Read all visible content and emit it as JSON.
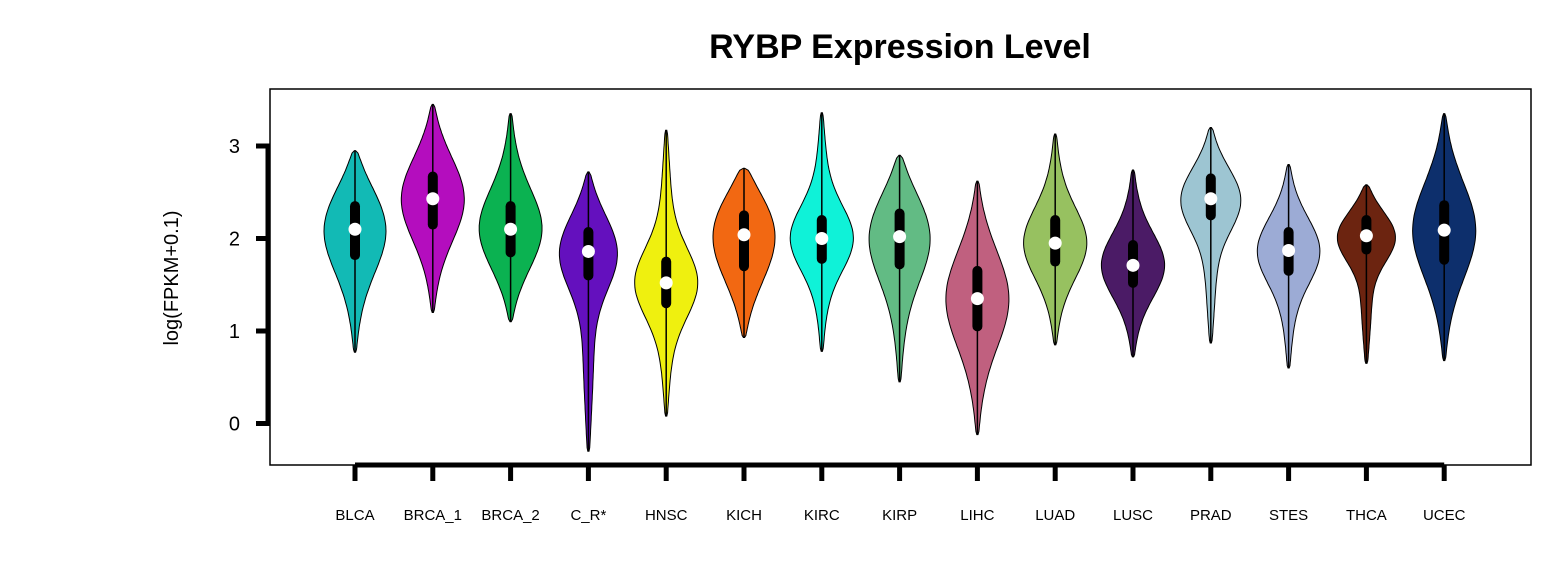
{
  "chart_data": {
    "type": "violin",
    "title": "RYBP Expression Level",
    "xlabel": "",
    "ylabel": "log(FPKM+0.1)",
    "ylim": [
      -0.45,
      3.6
    ],
    "yticks": [
      0,
      1,
      2,
      3
    ],
    "grid": false,
    "legend": "none",
    "categories": [
      "BLCA",
      "BRCA_1",
      "BRCA_2",
      "C_R*",
      "HNSC",
      "KICH",
      "KIRC",
      "KIRP",
      "LIHC",
      "LUAD",
      "LUSC",
      "PRAD",
      "STES",
      "THCA",
      "UCEC"
    ],
    "colors": [
      "#12BAB5",
      "#B40DBE",
      "#0BB251",
      "#6410BE",
      "#EFF00F",
      "#F26812",
      "#0FF2D8",
      "#62BB84",
      "#C0607F",
      "#97C160",
      "#4B1B66",
      "#9DC5D2",
      "#9CABD5",
      "#6C2410",
      "#0D2F6C"
    ],
    "series": [
      {
        "category": "BLCA",
        "min": 0.77,
        "q1": 1.82,
        "median": 2.1,
        "q3": 2.35,
        "max": 2.95
      },
      {
        "category": "BRCA_1",
        "min": 1.2,
        "q1": 2.15,
        "median": 2.43,
        "q3": 2.67,
        "max": 3.45
      },
      {
        "category": "BRCA_2",
        "min": 1.1,
        "q1": 1.85,
        "median": 2.1,
        "q3": 2.35,
        "max": 3.35
      },
      {
        "category": "C_R*",
        "min": -0.3,
        "q1": 1.6,
        "median": 1.86,
        "q3": 2.07,
        "max": 2.72
      },
      {
        "category": "HNSC",
        "min": 0.08,
        "q1": 1.3,
        "median": 1.52,
        "q3": 1.75,
        "max": 3.17
      },
      {
        "category": "KICH",
        "min": 0.93,
        "q1": 1.7,
        "median": 2.04,
        "q3": 2.25,
        "max": 2.76
      },
      {
        "category": "KIRC",
        "min": 0.78,
        "q1": 1.78,
        "median": 2.0,
        "q3": 2.2,
        "max": 3.36
      },
      {
        "category": "KIRP",
        "min": 0.45,
        "q1": 1.72,
        "median": 2.02,
        "q3": 2.27,
        "max": 2.9
      },
      {
        "category": "LIHC",
        "min": -0.12,
        "q1": 1.05,
        "median": 1.35,
        "q3": 1.65,
        "max": 2.62
      },
      {
        "category": "LUAD",
        "min": 0.85,
        "q1": 1.75,
        "median": 1.95,
        "q3": 2.2,
        "max": 3.13
      },
      {
        "category": "LUSC",
        "min": 0.72,
        "q1": 1.52,
        "median": 1.71,
        "q3": 1.93,
        "max": 2.74
      },
      {
        "category": "PRAD",
        "min": 0.87,
        "q1": 2.25,
        "median": 2.43,
        "q3": 2.65,
        "max": 3.2
      },
      {
        "category": "STES",
        "min": 0.6,
        "q1": 1.65,
        "median": 1.87,
        "q3": 2.07,
        "max": 2.8
      },
      {
        "category": "THCA",
        "min": 0.65,
        "q1": 1.88,
        "median": 2.03,
        "q3": 2.2,
        "max": 2.58
      },
      {
        "category": "UCEC",
        "min": 0.68,
        "q1": 1.77,
        "median": 2.09,
        "q3": 2.36,
        "max": 3.35
      }
    ]
  }
}
